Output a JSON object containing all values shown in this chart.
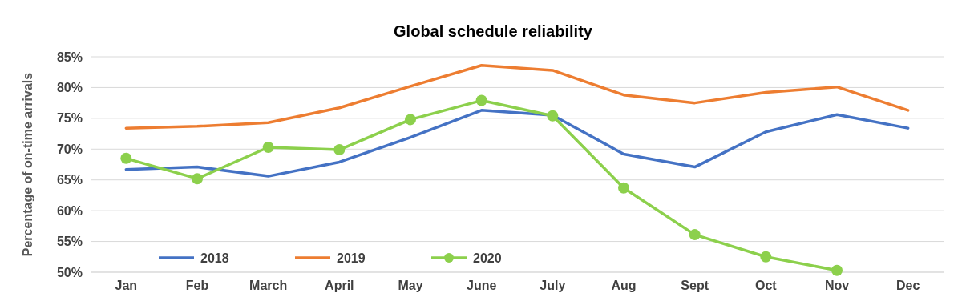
{
  "chart_data": {
    "type": "line",
    "title": "Global schedule reliability",
    "ylabel": "Percentage of on-time arrivals",
    "categories": [
      "Jan",
      "Feb",
      "March",
      "April",
      "May",
      "June",
      "July",
      "Aug",
      "Sept",
      "Oct",
      "Nov",
      "Dec"
    ],
    "series": [
      {
        "name": "2018",
        "color": "#4472c4",
        "marker": "none",
        "values": [
          66.7,
          67.1,
          65.6,
          67.9,
          71.9,
          76.3,
          75.5,
          69.2,
          67.1,
          72.8,
          75.6,
          73.4
        ]
      },
      {
        "name": "2019",
        "color": "#ed7d31",
        "marker": "none",
        "values": [
          73.4,
          73.7,
          74.3,
          76.7,
          80.2,
          83.6,
          82.8,
          78.8,
          77.5,
          79.2,
          80.1,
          76.3
        ]
      },
      {
        "name": "2020",
        "color": "#8cd04c",
        "marker": "circle",
        "values": [
          68.5,
          65.2,
          70.3,
          69.9,
          74.8,
          77.9,
          75.4,
          63.7,
          56.1,
          52.5,
          50.3,
          null
        ]
      }
    ],
    "ylim": [
      50,
      85
    ],
    "yticks": [
      {
        "value": 50,
        "label": "50%"
      },
      {
        "value": 55,
        "label": "55%"
      },
      {
        "value": 60,
        "label": "60%"
      },
      {
        "value": 65,
        "label": "65%"
      },
      {
        "value": 70,
        "label": "70%"
      },
      {
        "value": 75,
        "label": "75%"
      },
      {
        "value": 80,
        "label": "80%"
      },
      {
        "value": 85,
        "label": "85%"
      }
    ],
    "grid": "y",
    "legend": "bottom left",
    "line_style": "solid"
  }
}
